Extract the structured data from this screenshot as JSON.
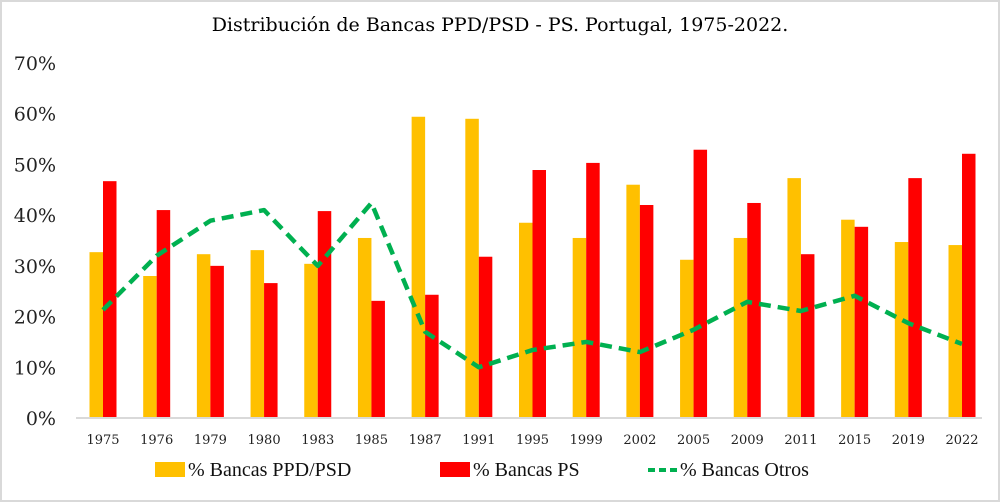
{
  "chart_data": {
    "type": "bar",
    "title": "Distribución de Bancas PPD/PSD - PS. Portugal, 1975-2022.",
    "xlabel": "",
    "ylabel": "",
    "ylim": [
      0,
      70
    ],
    "yticks": [
      "0%",
      "10%",
      "20%",
      "30%",
      "40%",
      "50%",
      "60%",
      "70%"
    ],
    "grid": false,
    "legend_position": "bottom",
    "categories": [
      "1975",
      "1976",
      "1979",
      "1980",
      "1983",
      "1985",
      "1987",
      "1991",
      "1995",
      "1999",
      "2002",
      "2005",
      "2009",
      "2011",
      "2015",
      "2019",
      "2022"
    ],
    "series": [
      {
        "name": "% Bancas PPD/PSD",
        "type": "bar",
        "color": "#FFC000",
        "values": [
          32.7,
          28.0,
          32.3,
          33.1,
          30.4,
          35.5,
          59.4,
          59.0,
          38.5,
          35.5,
          46.0,
          31.2,
          35.5,
          47.3,
          39.1,
          34.7,
          34.1
        ]
      },
      {
        "name": "% Bancas PS",
        "type": "bar",
        "color": "#FF0000",
        "values": [
          46.7,
          41.0,
          30.0,
          26.6,
          40.8,
          23.1,
          24.3,
          31.8,
          48.9,
          50.3,
          42.0,
          52.9,
          42.4,
          32.3,
          37.7,
          47.3,
          52.1
        ]
      },
      {
        "name": "% Bancas Otros",
        "type": "line",
        "style": "dashed",
        "color": "#00B050",
        "values": [
          21.3,
          32.0,
          38.9,
          41.0,
          30.0,
          42.4,
          17.0,
          10.0,
          13.4,
          15.0,
          13.0,
          17.4,
          22.9,
          21.1,
          24.1,
          18.7,
          14.6
        ]
      }
    ]
  }
}
